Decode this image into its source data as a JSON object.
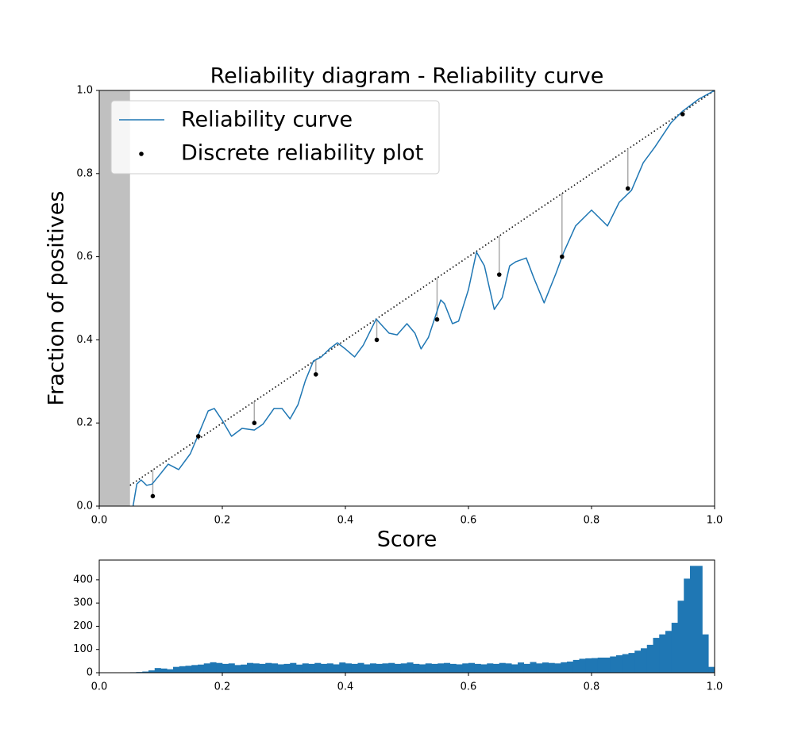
{
  "chart_data": [
    {
      "type": "reliability",
      "title": "Reliability diagram - Reliability curve",
      "xlabel": "Score",
      "ylabel": "Fraction of positives",
      "xlim": [
        0,
        1
      ],
      "ylim": [
        0,
        1
      ],
      "xticks": [
        {
          "value": 0,
          "label": "0.0"
        },
        {
          "value": 0.2,
          "label": "0.2"
        },
        {
          "value": 0.4,
          "label": "0.4"
        },
        {
          "value": 0.6,
          "label": "0.6"
        },
        {
          "value": 0.8,
          "label": "0.8"
        },
        {
          "value": 1,
          "label": "1.0"
        }
      ],
      "yticks": [
        {
          "value": 0,
          "label": "0.0"
        },
        {
          "value": 0.2,
          "label": "0.2"
        },
        {
          "value": 0.4,
          "label": "0.4"
        },
        {
          "value": 0.6,
          "label": "0.6"
        },
        {
          "value": 0.8,
          "label": "0.8"
        },
        {
          "value": 1,
          "label": "1.0"
        }
      ],
      "shaded_region": [
        0,
        0.05
      ],
      "legend": "upper left",
      "series": [
        {
          "name": "Reliability curve",
          "color": "#1f77b4",
          "x": [
            0.055,
            0.061,
            0.068,
            0.077,
            0.086,
            0.097,
            0.112,
            0.129,
            0.148,
            0.161,
            0.177,
            0.187,
            0.2,
            0.215,
            0.232,
            0.252,
            0.266,
            0.284,
            0.297,
            0.31,
            0.323,
            0.335,
            0.348,
            0.361,
            0.374,
            0.387,
            0.4,
            0.415,
            0.429,
            0.45,
            0.471,
            0.484,
            0.5,
            0.513,
            0.523,
            0.535,
            0.555,
            0.561,
            0.574,
            0.584,
            0.6,
            0.613,
            0.626,
            0.642,
            0.655,
            0.667,
            0.677,
            0.694,
            0.706,
            0.723,
            0.742,
            0.755,
            0.774,
            0.8,
            0.826,
            0.845,
            0.865,
            0.884,
            0.903,
            0.929,
            0.948,
            0.974,
            1
          ],
          "values": [
            0,
            0.053,
            0.063,
            0.05,
            0.053,
            0.073,
            0.101,
            0.088,
            0.126,
            0.172,
            0.229,
            0.235,
            0.206,
            0.168,
            0.187,
            0.183,
            0.197,
            0.235,
            0.235,
            0.21,
            0.244,
            0.302,
            0.349,
            0.359,
            0.378,
            0.393,
            0.378,
            0.359,
            0.387,
            0.45,
            0.416,
            0.412,
            0.439,
            0.416,
            0.378,
            0.406,
            0.496,
            0.487,
            0.439,
            0.445,
            0.521,
            0.611,
            0.578,
            0.473,
            0.502,
            0.578,
            0.588,
            0.597,
            0.55,
            0.489,
            0.559,
            0.611,
            0.674,
            0.712,
            0.674,
            0.731,
            0.76,
            0.826,
            0.864,
            0.922,
            0.95,
            0.979,
            1
          ]
        },
        {
          "name": "Discrete reliability plot",
          "color": "#000000",
          "x": [
            0.087,
            0.161,
            0.252,
            0.352,
            0.451,
            0.549,
            0.65,
            0.752,
            0.859,
            0.948
          ],
          "values": [
            0.024,
            0.168,
            0.2,
            0.317,
            0.4,
            0.449,
            0.557,
            0.6,
            0.764,
            0.943
          ]
        }
      ]
    },
    {
      "type": "histogram",
      "color": "#1f77b4",
      "xlim": [
        0,
        1
      ],
      "ylim": [
        0,
        485
      ],
      "xticks": [
        {
          "value": 0,
          "label": "0.0"
        },
        {
          "value": 0.2,
          "label": "0.2"
        },
        {
          "value": 0.4,
          "label": "0.4"
        },
        {
          "value": 0.6,
          "label": "0.6"
        },
        {
          "value": 0.8,
          "label": "0.8"
        },
        {
          "value": 1,
          "label": "1.0"
        }
      ],
      "yticks": [
        0,
        100,
        200,
        300,
        400
      ],
      "bins": [
        0,
        0.01,
        0.02,
        0.03,
        0.04,
        0.05,
        0.06,
        0.07,
        0.08,
        0.09,
        0.1,
        0.11,
        0.12,
        0.13,
        0.14,
        0.15,
        0.16,
        0.17,
        0.18,
        0.19,
        0.2,
        0.21,
        0.22,
        0.23,
        0.24,
        0.25,
        0.26,
        0.27,
        0.28,
        0.29,
        0.3,
        0.31,
        0.32,
        0.33,
        0.34,
        0.35,
        0.36,
        0.37,
        0.38,
        0.39,
        0.4,
        0.41,
        0.42,
        0.43,
        0.44,
        0.45,
        0.46,
        0.47,
        0.48,
        0.49,
        0.5,
        0.51,
        0.52,
        0.53,
        0.54,
        0.55,
        0.56,
        0.57,
        0.58,
        0.59,
        0.6,
        0.61,
        0.62,
        0.63,
        0.64,
        0.65,
        0.66,
        0.67,
        0.68,
        0.69,
        0.7,
        0.71,
        0.72,
        0.73,
        0.74,
        0.75,
        0.76,
        0.77,
        0.78,
        0.79,
        0.8,
        0.81,
        0.82,
        0.83,
        0.84,
        0.85,
        0.86,
        0.87,
        0.88,
        0.89,
        0.9,
        0.91,
        0.92,
        0.93,
        0.94,
        0.95,
        0.96,
        0.97,
        0.98,
        0.99,
        1
      ],
      "values": [
        0,
        0,
        0,
        0,
        0,
        2,
        3,
        5,
        10,
        20,
        18,
        15,
        25,
        28,
        30,
        33,
        35,
        40,
        45,
        42,
        38,
        40,
        33,
        35,
        42,
        40,
        38,
        42,
        40,
        36,
        38,
        42,
        35,
        40,
        38,
        42,
        38,
        40,
        36,
        44,
        40,
        38,
        42,
        36,
        40,
        38,
        40,
        42,
        38,
        40,
        44,
        38,
        36,
        40,
        38,
        40,
        42,
        38,
        36,
        40,
        42,
        38,
        36,
        40,
        38,
        42,
        40,
        36,
        44,
        38,
        46,
        40,
        44,
        42,
        40,
        45,
        48,
        55,
        60,
        62,
        63,
        65,
        65,
        70,
        75,
        80,
        85,
        95,
        105,
        120,
        150,
        165,
        180,
        215,
        310,
        405,
        460,
        460,
        165,
        25
      ]
    }
  ]
}
